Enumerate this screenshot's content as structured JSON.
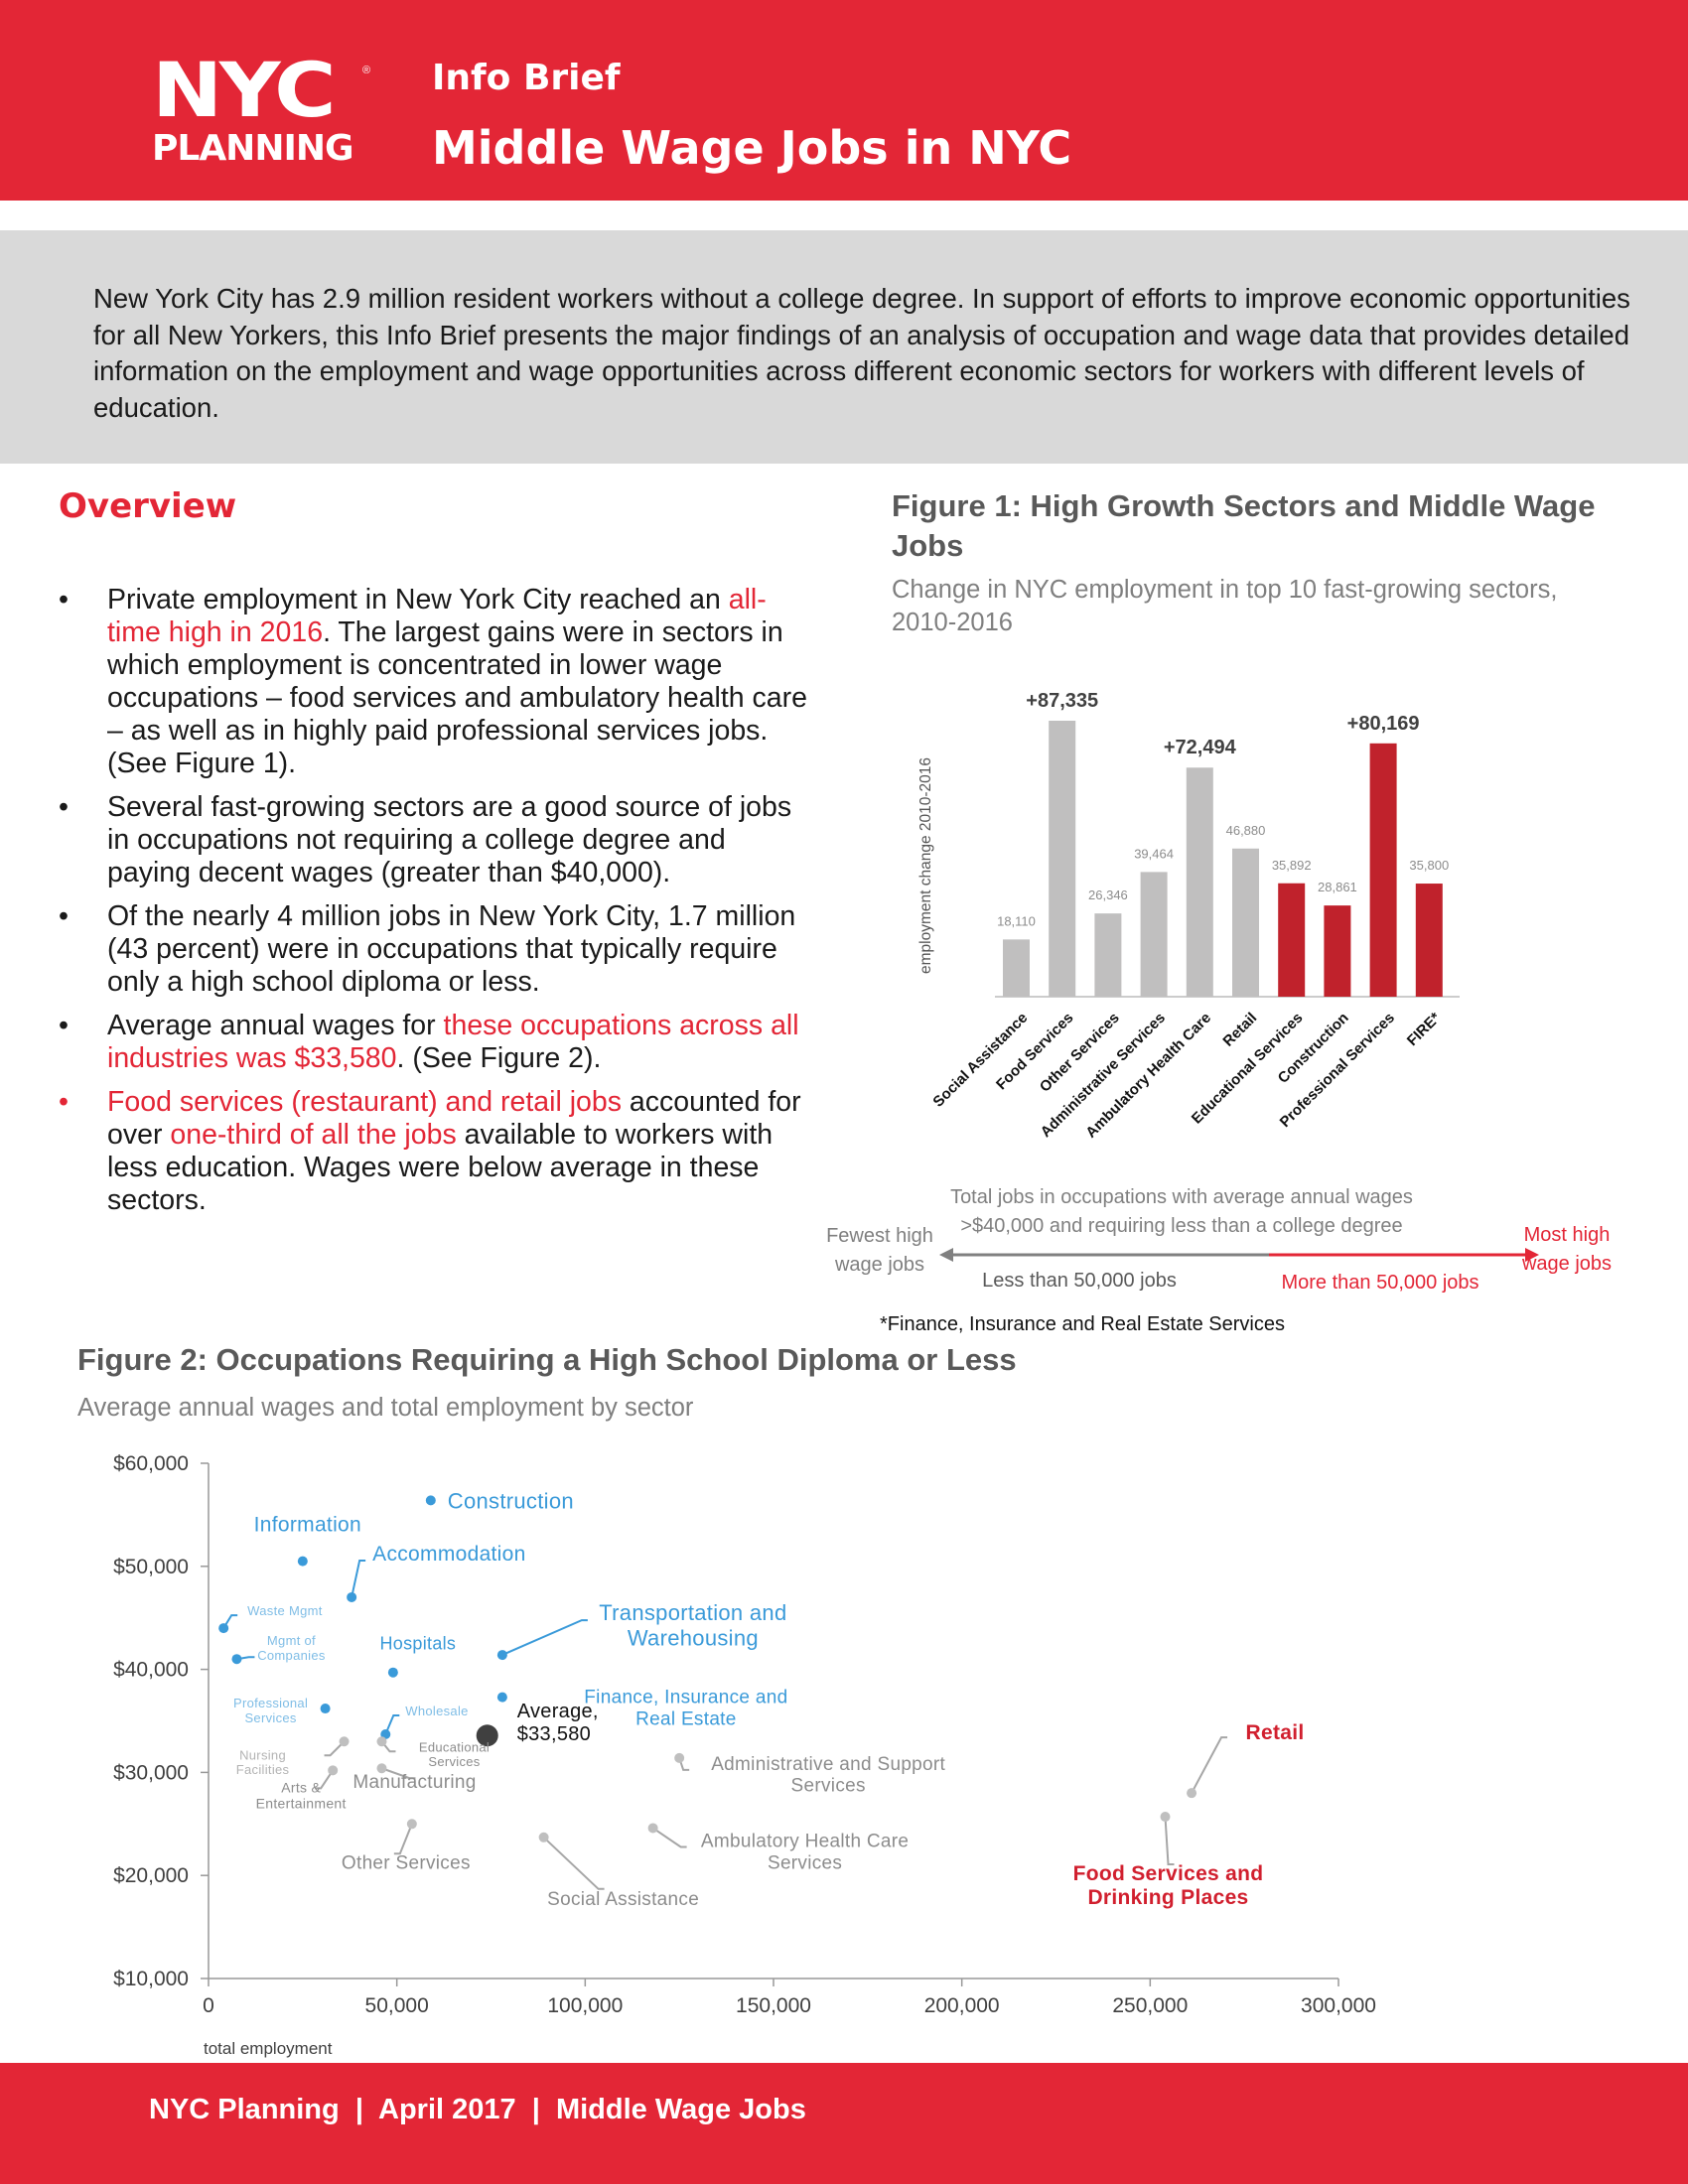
{
  "header": {
    "logo_nyc": "NYC",
    "logo_reg": "®",
    "logo_planning": "PLANNING",
    "kicker": "Info Brief",
    "title": "Middle Wage Jobs in NYC"
  },
  "intro": "New York City has 2.9 million resident workers without a college degree. In support of efforts to improve economic opportunities for all New Yorkers, this Info Brief presents the major findings of an analysis of occupation and wage data that provides detailed information on the employment and wage opportunities across different economic sectors for workers with different levels of education.",
  "overview": {
    "heading": "Overview",
    "b1_a": "Private employment in New York City reached an ",
    "b1_red": "all-time high in 2016",
    "b1_b": ". The largest gains were in sectors in which employment is concentrated in lower wage occupations – food services and ambulatory health care – as well as in highly paid professional services jobs. (See Figure 1).",
    "b2": "Several fast-growing sectors are a good source of jobs in occupations not requiring a college degree and paying decent wages (greater than $40,000).",
    "b3": "Of the nearly 4 million jobs in New York City, 1.7 million (43 percent) were in occupations that typically require only a high school diploma or less.",
    "b4_a": "Average annual wages for ",
    "b4_red": "these occupations across all industries was $33,580",
    "b4_b": ". (See Figure 2).",
    "b5_red1": "Food services (restaurant) and retail jobs",
    "b5_a": " accounted for over ",
    "b5_red2": "one-third of all the jobs",
    "b5_b": " available to workers with less education. Wages were below average in these sectors."
  },
  "figure1": {
    "title": "Figure 1: High Growth Sectors and Middle Wage Jobs",
    "subtitle": "Change in NYC employment in top 10 fast-growing sectors, 2010-2016",
    "legend_total": "Total jobs in occupations with average annual wages >$40,000 and requiring less than a college degree",
    "legend_fewest": "Fewest high wage jobs",
    "legend_most": "Most high wage jobs",
    "legend_less": "Less than 50,000 jobs",
    "legend_more": "More than 50,000 jobs",
    "footnote": "*Finance, Insurance and Real Estate Services"
  },
  "figure2": {
    "title": "Figure 2: Occupations Requiring a High School Diploma or Less",
    "subtitle": "Average annual wages and total employment by sector"
  },
  "colors": {
    "brand_red": "#e32636",
    "bar_gray": "#c0bfbf",
    "bar_red": "#c0222c",
    "dot_blue": "#3a9ad9",
    "label_blue": "#3a9ad9",
    "label_gray": "#8c8c8c"
  },
  "chart_data": [
    {
      "type": "bar",
      "title": "Figure 1: High Growth Sectors and Middle Wage Jobs",
      "subtitle": "Change in NYC employment in top 10 fast-growing sectors, 2010-2016",
      "ylabel": "employment change 2010-2016",
      "xlabel": "",
      "ylim": [
        0,
        87335
      ],
      "categories": [
        "Social Assistance",
        "Food Services",
        "Other Services",
        "Administrative Services",
        "Ambulatory Health Care",
        "Retail",
        "Educational Services",
        "Construction",
        "Professional Services",
        "FIRE*"
      ],
      "values": [
        18110,
        87335,
        26346,
        39464,
        72494,
        46880,
        35892,
        28861,
        80169,
        35800
      ],
      "labels": [
        "18,110",
        "+87,335",
        "26,346",
        "39,464",
        "+72,494",
        "46,880",
        "35,892",
        "28,861",
        "+80,169",
        "35,800"
      ],
      "groups": [
        "less",
        "less",
        "less",
        "less",
        "less",
        "less",
        "more",
        "more",
        "more",
        "more"
      ]
    },
    {
      "type": "scatter",
      "title": "Figure 2: Occupations Requiring a High School Diploma or Less",
      "subtitle": "Average annual wages and total employment by sector",
      "xlabel": "total employment",
      "ylabel": "",
      "xlim": [
        0,
        300000
      ],
      "ylim": [
        10000,
        60000
      ],
      "xticks": [
        "0",
        "50,000",
        "100,000",
        "150,000",
        "200,000",
        "250,000",
        "300,000"
      ],
      "yticks": [
        "$10,000",
        "$20,000",
        "$30,000",
        "$40,000",
        "$50,000",
        "$60,000"
      ],
      "points": [
        {
          "label": "Construction",
          "x": 59000,
          "y": 56400,
          "color": "blue"
        },
        {
          "label": "Information",
          "x": 25000,
          "y": 50500,
          "color": "blue"
        },
        {
          "label": "Accommodation",
          "x": 38000,
          "y": 47000,
          "color": "blue"
        },
        {
          "label": "Waste Mgmt",
          "x": 4000,
          "y": 44000,
          "color": "blue"
        },
        {
          "label": "Mgmt of Companies",
          "x": 7500,
          "y": 41000,
          "color": "blue"
        },
        {
          "label": "Hospitals",
          "x": 49000,
          "y": 39700,
          "color": "blue"
        },
        {
          "label": "Transportation and Warehousing",
          "x": 78000,
          "y": 41400,
          "color": "blue"
        },
        {
          "label": "Professional Services",
          "x": 31000,
          "y": 36200,
          "color": "blue"
        },
        {
          "label": "Wholesale",
          "x": 47000,
          "y": 33700,
          "color": "blue"
        },
        {
          "label": "Finance, Insurance and Real Estate",
          "x": 78000,
          "y": 37300,
          "color": "blue"
        },
        {
          "label": "Average, $33,580",
          "x": 74000,
          "y": 33580,
          "color": "dark"
        },
        {
          "label": "Nursing Facilities",
          "x": 36000,
          "y": 33000,
          "color": "gray"
        },
        {
          "label": "Educational Services",
          "x": 46000,
          "y": 33000,
          "color": "gray"
        },
        {
          "label": "Arts & Entertainment",
          "x": 33000,
          "y": 30200,
          "color": "gray"
        },
        {
          "label": "Manufacturing",
          "x": 46000,
          "y": 30400,
          "color": "gray"
        },
        {
          "label": "Administrative and Support Services",
          "x": 125000,
          "y": 31400,
          "color": "gray"
        },
        {
          "label": "Retail",
          "x": 261000,
          "y": 28000,
          "color": "gray"
        },
        {
          "label": "Other Services",
          "x": 54000,
          "y": 25000,
          "color": "gray"
        },
        {
          "label": "Food Services and Drinking Places",
          "x": 254000,
          "y": 25700,
          "color": "gray"
        },
        {
          "label": "Ambulatory Health Care Services",
          "x": 118000,
          "y": 24600,
          "color": "gray"
        },
        {
          "label": "Social Assistance",
          "x": 89000,
          "y": 23700,
          "color": "gray"
        }
      ]
    }
  ],
  "footer": "NYC Planning  |  April 2017  |  Middle Wage Jobs"
}
